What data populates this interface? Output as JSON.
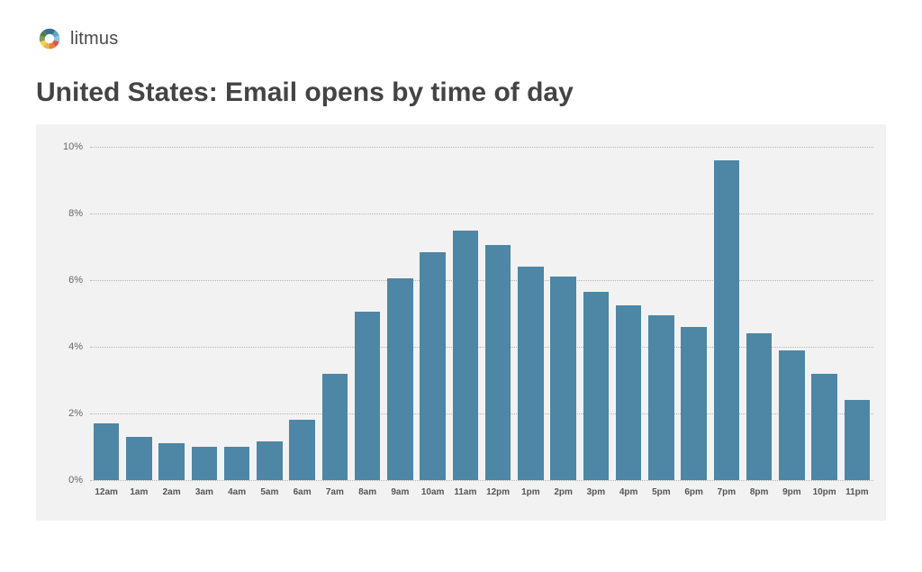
{
  "brand": {
    "name": "litmus",
    "logo_colors": [
      "#3a6f8f",
      "#5aa6c4",
      "#8fc6d9",
      "#d9534f",
      "#e57e3e",
      "#f0ad4e",
      "#f7d154",
      "#7ba05b",
      "#4f7b52",
      "#3a6f8f"
    ]
  },
  "title": "United States: Email opens by time of day",
  "chart": {
    "type": "bar",
    "background_color": "#f2f2f2",
    "bar_color": "#4e86a5",
    "grid_color": "#b5b5b5",
    "axis_label_color": "#666666",
    "x_label_color": "#555555",
    "title_color": "#444444",
    "title_fontsize": 30,
    "axis_fontsize": 11,
    "x_fontsize": 10,
    "ylim": [
      0,
      10
    ],
    "ytick_step": 2,
    "ytick_suffix": "%",
    "bar_width_ratio": 0.78,
    "categories": [
      "12am",
      "1am",
      "2am",
      "3am",
      "4am",
      "5am",
      "6am",
      "7am",
      "8am",
      "9am",
      "10am",
      "11am",
      "12pm",
      "1pm",
      "2pm",
      "3pm",
      "4pm",
      "5pm",
      "6pm",
      "7pm",
      "8pm",
      "9pm",
      "10pm",
      "11pm"
    ],
    "values": [
      1.7,
      1.3,
      1.1,
      1.0,
      1.0,
      1.15,
      1.8,
      3.2,
      5.05,
      6.05,
      6.85,
      7.5,
      7.05,
      6.4,
      6.1,
      5.65,
      5.25,
      4.95,
      4.6,
      9.6,
      4.4,
      3.9,
      3.2,
      2.4
    ]
  }
}
